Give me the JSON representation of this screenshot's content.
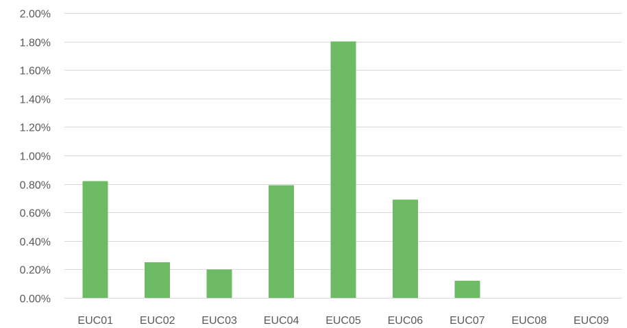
{
  "chart_data": {
    "type": "bar",
    "title": "",
    "xlabel": "",
    "ylabel": "",
    "categories": [
      "EUC01",
      "EUC02",
      "EUC03",
      "EUC04",
      "EUC05",
      "EUC06",
      "EUC07",
      "EUC08",
      "EUC09"
    ],
    "values": [
      0.82,
      0.25,
      0.2,
      0.79,
      1.8,
      0.69,
      0.12,
      0,
      0
    ],
    "value_unit": "%",
    "ylim": [
      0,
      2.0
    ],
    "yticks": [
      0,
      0.2,
      0.4,
      0.6,
      0.8,
      1.0,
      1.2,
      1.4,
      1.6,
      1.8,
      2.0
    ],
    "ytick_labels": [
      "0.00%",
      "0.20%",
      "0.40%",
      "0.60%",
      "0.80%",
      "1.00%",
      "1.20%",
      "1.40%",
      "1.60%",
      "1.80%",
      "2.00%"
    ],
    "grid": true,
    "legend": "none",
    "bar_color": "#6dbb65"
  }
}
